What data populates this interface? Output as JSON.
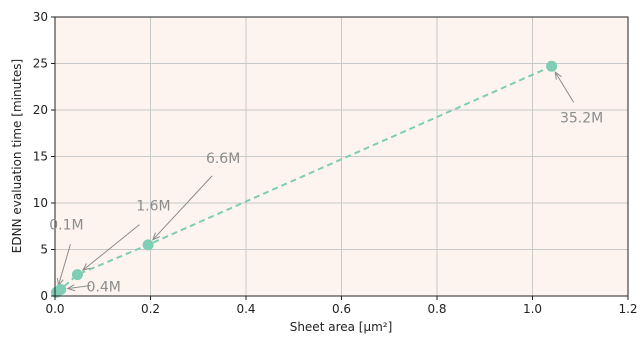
{
  "chart_data": {
    "type": "line",
    "title": "",
    "xlabel": "Sheet area [μm²]",
    "ylabel": "EDNN evaluation time [minutes]",
    "xlim": [
      0,
      1.2
    ],
    "ylim": [
      0,
      30
    ],
    "xticks": [
      0.0,
      0.2,
      0.4,
      0.6,
      0.8,
      1.0,
      1.2
    ],
    "xtick_labels": [
      "0.0",
      "0.2",
      "0.4",
      "0.6",
      "0.8",
      "1.0",
      "1.2"
    ],
    "yticks": [
      0,
      5,
      10,
      15,
      20,
      25,
      30
    ],
    "ytick_labels": [
      "0",
      "5",
      "10",
      "15",
      "20",
      "25",
      "30"
    ],
    "grid": true,
    "background_color": "#fdf4ef",
    "series_color": "#7fcdb4",
    "annotation_color": "#8c8c8c",
    "line_style": "dashed",
    "points": [
      {
        "x": 0.003,
        "y": 0.4,
        "label": "0.1M"
      },
      {
        "x": 0.012,
        "y": 0.7,
        "label": "0.4M"
      },
      {
        "x": 0.047,
        "y": 2.3,
        "label": "1.6M"
      },
      {
        "x": 0.195,
        "y": 5.5,
        "label": "6.6M"
      },
      {
        "x": 1.04,
        "y": 24.7,
        "label": "35.2M"
      }
    ]
  }
}
